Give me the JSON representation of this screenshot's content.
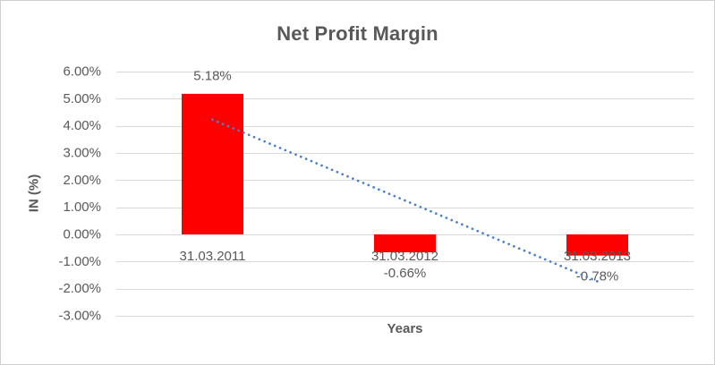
{
  "chart_data": {
    "type": "bar",
    "title": "Net Profit Margin",
    "xlabel": "Years",
    "ylabel": "IN (%)",
    "categories": [
      "31.03.2011",
      "31.03.2012",
      "31.03.2013"
    ],
    "values": [
      5.18,
      -0.66,
      -0.78
    ],
    "data_labels": [
      "5.18%",
      "-0.66%",
      "-0.78%"
    ],
    "y_axis": {
      "min": -3,
      "max": 6,
      "tick_step": 1,
      "tick_labels": [
        "6.00%",
        "5.00%",
        "4.00%",
        "3.00%",
        "2.00%",
        "1.00%",
        "0.00%",
        "-1.00%",
        "-2.00%",
        "-3.00%"
      ]
    },
    "grid": true,
    "legend": "none",
    "colors": {
      "bar": "#FF0000",
      "text": "#595959",
      "gridline": "#D9D9D9",
      "trendline": "#4A80C8",
      "chart_border": "#D0CECE"
    },
    "trendline": {
      "type": "linear",
      "style": "dotted",
      "start_value": 4.23,
      "end_value": -1.73
    }
  }
}
